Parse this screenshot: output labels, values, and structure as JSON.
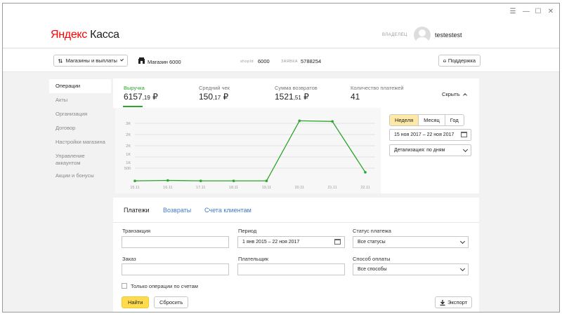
{
  "window": {
    "controls": [
      "☰",
      "—",
      "☐",
      "✕"
    ]
  },
  "header": {
    "logo_ya": "Яндекс",
    "logo_rest": " Касса",
    "owner_label": "ВЛАДЕЛЕЦ",
    "username": "testestest"
  },
  "toolbar": {
    "stores_button": "Магазины и выплаты",
    "store_name": "Магазин 6000",
    "shopid_label": "shopId",
    "shopid_value": "6000",
    "request_label": "ЗАЯВКА",
    "request_value": "5788254",
    "support_button": "Поддержка"
  },
  "sidebar": {
    "items": [
      {
        "label": "Операции",
        "active": true
      },
      {
        "label": "Акты"
      },
      {
        "label": "Организация"
      },
      {
        "label": "Договор"
      },
      {
        "label": "Настройки магазина"
      },
      {
        "label": "Управление аккаунтом"
      },
      {
        "label": "Акции и бонусы"
      }
    ]
  },
  "metrics": [
    {
      "label": "Выручка",
      "int": "6157",
      "dec": ",19",
      "cur": " ₽"
    },
    {
      "label": "Средний чек",
      "int": "150",
      "dec": ",17",
      "cur": " ₽"
    },
    {
      "label": "Сумма возвратов",
      "int": "1521",
      "dec": ",51",
      "cur": " ₽"
    },
    {
      "label": "Количество платежей",
      "int": "41",
      "dec": "",
      "cur": ""
    }
  ],
  "collapse_label": "Скрыть",
  "period_tabs": [
    "Неделя",
    "Месяц",
    "Год"
  ],
  "chart_date_range": "15 ноя 2017 – 22 ноя 2017",
  "detail_select": "Детализация: по дням",
  "chart_data": {
    "type": "line",
    "x": [
      "15.11",
      "16.11",
      "17.11",
      "18.11",
      "19.11",
      "20.11",
      "21.11",
      "22.11"
    ],
    "series": [
      {
        "values": [
          30,
          50,
          30,
          30,
          30,
          2980,
          2950,
          450
        ]
      }
    ],
    "y_ticks": [
      "3K",
      "2K",
      "2K",
      "1K",
      "1K",
      "500"
    ],
    "ylim": [
      0,
      3200
    ],
    "grid": true,
    "color": "#2ba52b"
  },
  "tabs": [
    "Платежи",
    "Возвраты",
    "Счета клиентам"
  ],
  "filters": {
    "transaction_label": "Транзакция",
    "period_label": "Период",
    "period_value": "1 янв 2015 – 22 ноя 2017",
    "status_label": "Статус платежа",
    "status_value": "Все статусы",
    "order_label": "Заказ",
    "payer_label": "Плательщик",
    "method_label": "Способ оплаты",
    "method_value": "Все способы",
    "only_invoices": "Только операции по счетам",
    "find_button": "Найти",
    "reset_button": "Сбросить",
    "export_button": "Экспорт"
  }
}
